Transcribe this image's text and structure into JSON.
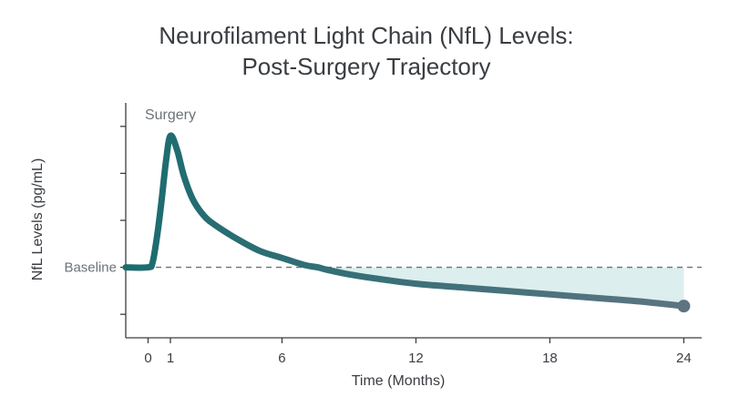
{
  "chart_data": {
    "type": "line",
    "title_line1": "Neurofilament Light Chain (NfL) Levels:",
    "title_line2": "Post-Surgery Trajectory",
    "xlabel": "Time (Months)",
    "ylabel": "NfL Levels (pg/mL)",
    "x_ticks": [
      0,
      1,
      6,
      12,
      18,
      24
    ],
    "xlim": [
      -1,
      24.8
    ],
    "ylim": [
      0,
      100
    ],
    "y_tick_values": [
      10,
      30,
      50,
      70,
      90
    ],
    "baseline": {
      "label": "Baseline",
      "value": 30
    },
    "annotation": {
      "text": "Surgery",
      "x": 1
    },
    "series": [
      {
        "x": [
          -1,
          0,
          0.2,
          0.4,
          0.6,
          0.8,
          1,
          1.3,
          1.6,
          2,
          2.5,
          3,
          4,
          5,
          6,
          7,
          7.6,
          8,
          9,
          10,
          12,
          14,
          16,
          18,
          20,
          22,
          24
        ],
        "values": [
          30,
          30,
          32,
          43,
          58,
          75,
          86,
          80,
          69,
          59,
          52,
          48,
          42,
          37,
          34,
          31,
          30,
          29,
          27,
          25.5,
          23,
          21.5,
          20,
          18.5,
          17,
          15.5,
          13.5
        ]
      }
    ],
    "colors": {
      "line_start": "#1b6c6f",
      "line_end": "#5d7482",
      "fill": "#dcefee",
      "axis": "#3a3d42",
      "baseline": "#6c7276",
      "text": "#3a3d42",
      "annotation": "#6c7276"
    }
  }
}
